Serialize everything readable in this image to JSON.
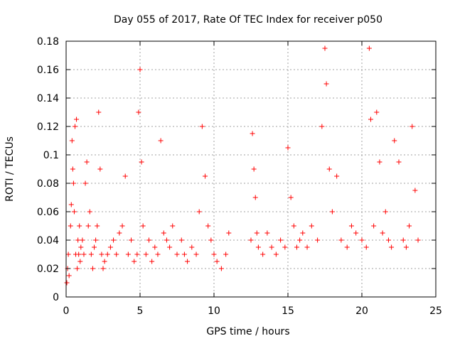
{
  "chart_data": {
    "type": "scatter",
    "title": "Day 055 of 2017, Rate Of TEC Index for receiver p050",
    "xlabel": "GPS time / hours",
    "ylabel": "ROTI / TECUs",
    "xlim": [
      0,
      25
    ],
    "ylim": [
      0,
      0.18
    ],
    "xticks": [
      0,
      5,
      10,
      15,
      20,
      25
    ],
    "xtick_labels": [
      "0",
      "5",
      "10",
      "15",
      "20",
      "25"
    ],
    "yticks": [
      0,
      0.02,
      0.04,
      0.06,
      0.08,
      0.1,
      0.12,
      0.14,
      0.16,
      0.18
    ],
    "ytick_labels": [
      "0",
      "0.02",
      "0.04",
      "0.06",
      "0.08",
      "0.1",
      "0.12",
      "0.14",
      "0.16",
      "0.18"
    ],
    "grid": true,
    "marker": "+",
    "marker_color": "#ff0000",
    "series": [
      {
        "name": "ROTI",
        "x": [
          0.05,
          0.1,
          0.15,
          0.2,
          0.3,
          0.35,
          0.4,
          0.45,
          0.5,
          0.55,
          0.6,
          0.65,
          0.7,
          0.75,
          0.8,
          0.85,
          0.9,
          0.95,
          1.0,
          1.1,
          1.2,
          1.3,
          1.4,
          1.5,
          1.6,
          1.7,
          1.8,
          1.9,
          2.0,
          2.1,
          2.2,
          2.3,
          2.4,
          2.5,
          2.6,
          2.8,
          3.0,
          3.2,
          3.4,
          3.6,
          3.8,
          4.0,
          4.2,
          4.4,
          4.6,
          4.8,
          4.9,
          5.0,
          5.1,
          5.2,
          5.4,
          5.6,
          5.8,
          6.0,
          6.2,
          6.4,
          6.6,
          6.8,
          7.0,
          7.2,
          7.5,
          7.8,
          8.0,
          8.2,
          8.5,
          8.8,
          9.0,
          9.2,
          9.4,
          9.6,
          9.8,
          10.0,
          10.2,
          10.5,
          10.8,
          11.0,
          12.5,
          12.6,
          12.7,
          12.8,
          12.9,
          13.0,
          13.3,
          13.6,
          13.9,
          14.2,
          14.5,
          14.8,
          15.0,
          15.2,
          15.4,
          15.6,
          15.8,
          16.0,
          16.3,
          16.6,
          17.0,
          17.3,
          17.5,
          17.6,
          17.8,
          18.0,
          18.3,
          18.6,
          19.0,
          19.3,
          19.6,
          20.0,
          20.3,
          20.5,
          20.6,
          20.8,
          21.0,
          21.2,
          21.4,
          21.6,
          21.8,
          22.0,
          22.2,
          22.5,
          22.8,
          23.0,
          23.2,
          23.4,
          23.6,
          23.8
        ],
        "y": [
          0.01,
          0.02,
          0.03,
          0.015,
          0.05,
          0.065,
          0.11,
          0.09,
          0.08,
          0.06,
          0.12,
          0.03,
          0.125,
          0.02,
          0.04,
          0.03,
          0.05,
          0.025,
          0.035,
          0.04,
          0.03,
          0.08,
          0.095,
          0.05,
          0.06,
          0.03,
          0.02,
          0.035,
          0.04,
          0.05,
          0.13,
          0.09,
          0.03,
          0.02,
          0.025,
          0.03,
          0.035,
          0.04,
          0.03,
          0.045,
          0.05,
          0.085,
          0.03,
          0.04,
          0.025,
          0.03,
          0.13,
          0.16,
          0.095,
          0.05,
          0.03,
          0.04,
          0.025,
          0.035,
          0.03,
          0.11,
          0.045,
          0.04,
          0.035,
          0.05,
          0.03,
          0.04,
          0.03,
          0.025,
          0.035,
          0.03,
          0.06,
          0.12,
          0.085,
          0.05,
          0.04,
          0.03,
          0.025,
          0.02,
          0.03,
          0.045,
          0.04,
          0.115,
          0.09,
          0.07,
          0.045,
          0.035,
          0.03,
          0.045,
          0.035,
          0.03,
          0.04,
          0.035,
          0.105,
          0.07,
          0.05,
          0.035,
          0.04,
          0.045,
          0.035,
          0.05,
          0.04,
          0.12,
          0.175,
          0.15,
          0.09,
          0.06,
          0.085,
          0.04,
          0.035,
          0.05,
          0.045,
          0.04,
          0.035,
          0.175,
          0.125,
          0.05,
          0.13,
          0.095,
          0.045,
          0.06,
          0.04,
          0.035,
          0.11,
          0.095,
          0.04,
          0.035,
          0.05,
          0.12,
          0.075,
          0.04
        ],
        "band_description_note": ""
      }
    ]
  }
}
